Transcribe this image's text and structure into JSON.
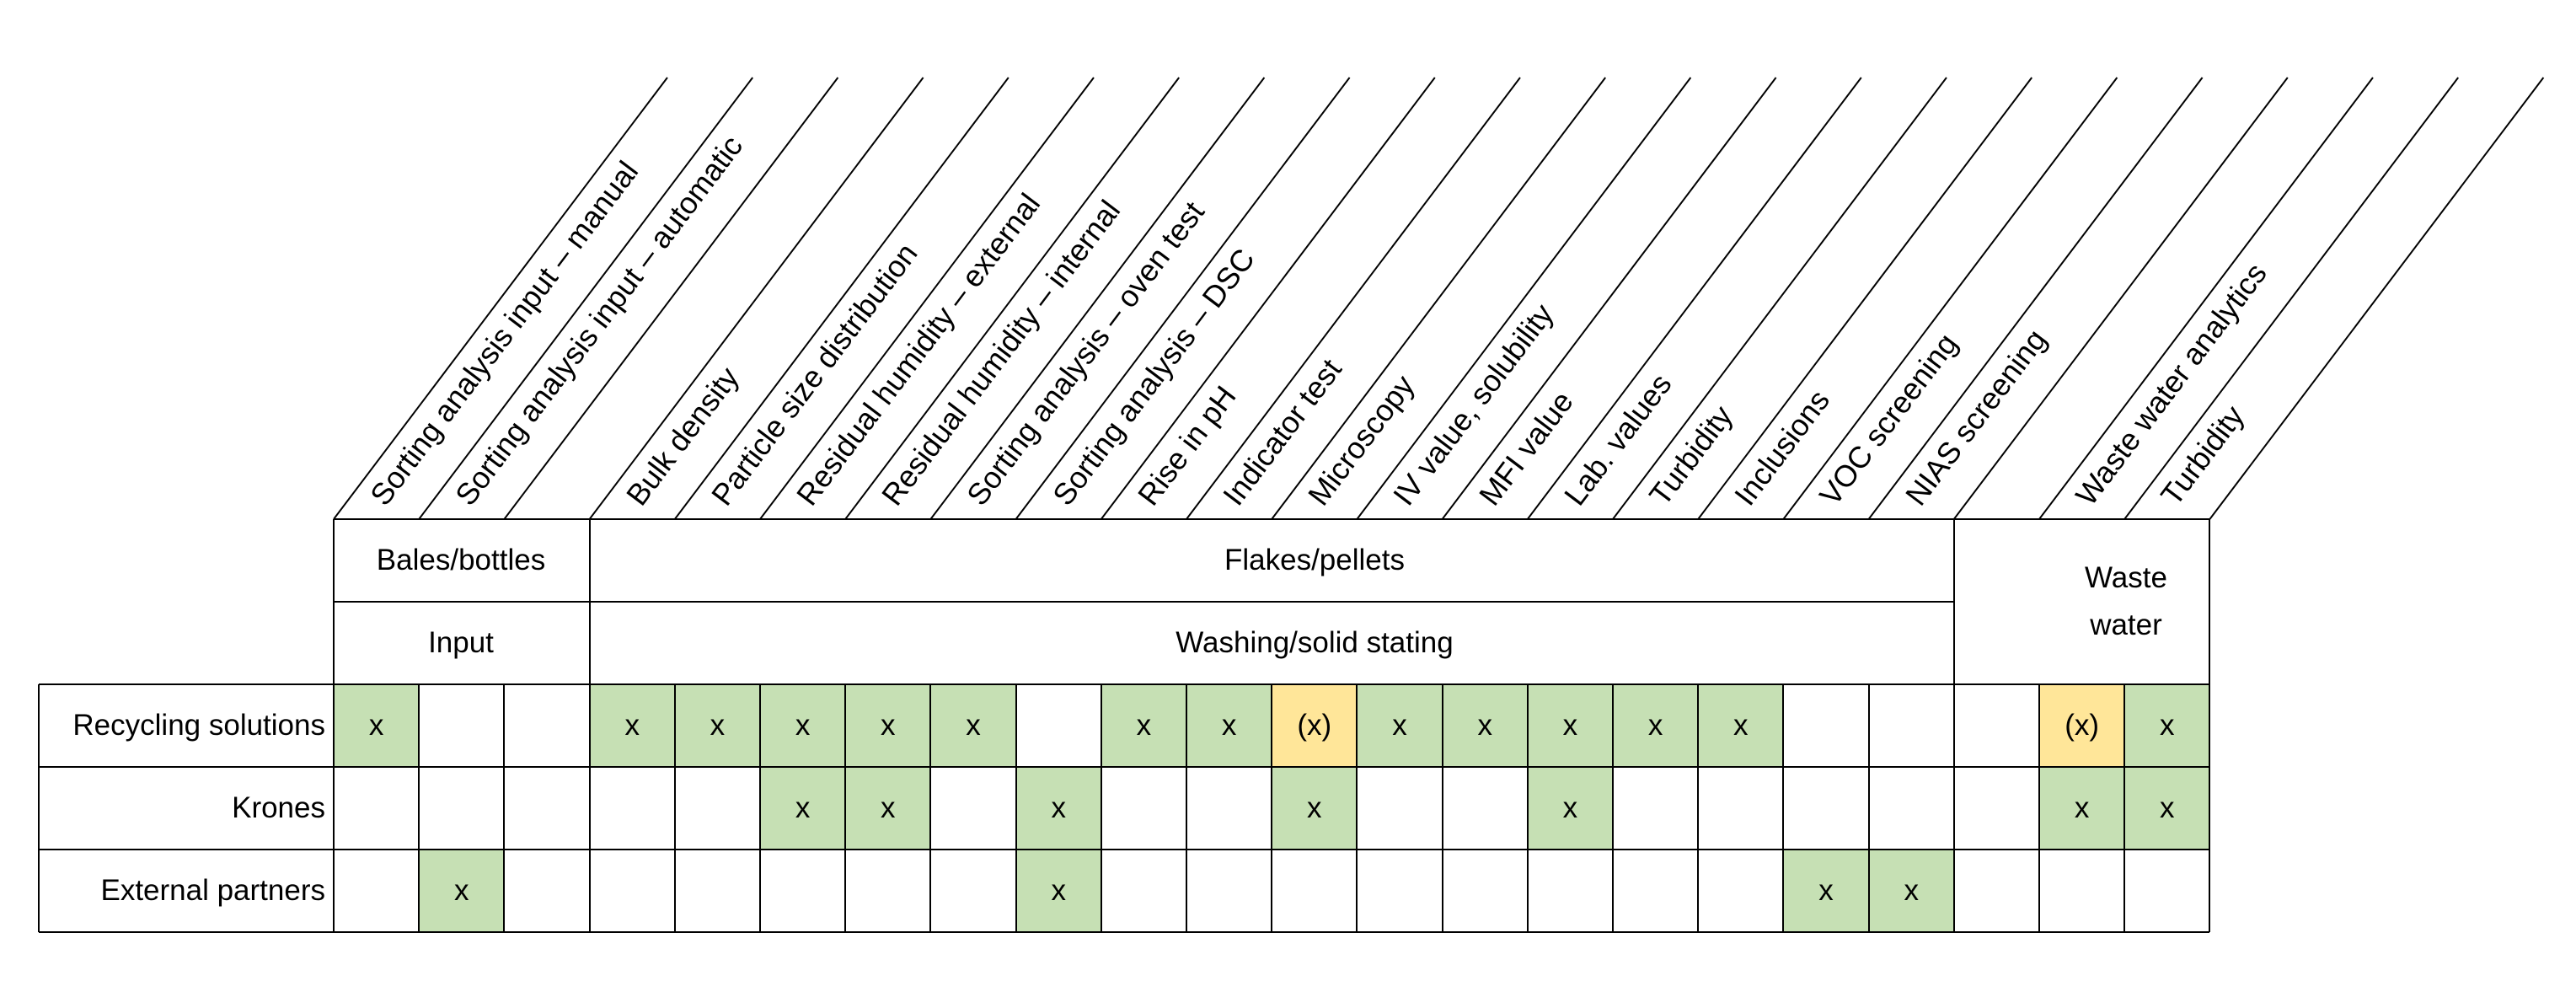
{
  "columns": [
    "Sorting analysis input – manual",
    "Sorting analysis input – automatic",
    "",
    "Bulk density",
    "Particle size distribution",
    "Residual humidity – external",
    "Residual humidity – internal",
    "Sorting analysis – oven test",
    "Sorting analysis – DSC",
    "Rise in pH",
    "Indicator test",
    "Microscopy",
    "IV value, solubility",
    "MFI value",
    "Lab. values",
    "Turbidity",
    "Inclusions",
    "VOC screening",
    "NIAS screening",
    "",
    "Waste water analytics",
    "Turbidity"
  ],
  "groups_top": [
    {
      "label": "Bales/bottles"
    },
    {
      "label": "Flakes/pellets"
    },
    {
      "label": "Waste\nwater"
    }
  ],
  "groups_second": [
    {
      "label": "Input"
    },
    {
      "label": "Washing/solid stating"
    }
  ],
  "rows": [
    {
      "label": "Recycling solutions",
      "cells": [
        "x",
        "",
        "",
        "x",
        "x",
        "x",
        "x",
        "x",
        "",
        "x",
        "x",
        "(x)",
        "x",
        "x",
        "x",
        "x",
        "x",
        "",
        "",
        "",
        "(x)",
        "x"
      ]
    },
    {
      "label": "Krones",
      "cells": [
        "",
        "",
        "",
        "",
        "",
        "x",
        "x",
        "",
        "x",
        "",
        "",
        "x",
        "",
        "",
        "x",
        "",
        "",
        "",
        "",
        "",
        "x",
        "x"
      ]
    },
    {
      "label": "External partners",
      "cells": [
        "",
        "x",
        "",
        "",
        "",
        "",
        "",
        "",
        "x",
        "",
        "",
        "",
        "",
        "",
        "",
        "",
        "",
        "x",
        "x",
        "",
        "",
        ""
      ]
    }
  ],
  "colors": {
    "marked": "#c6e0b4",
    "partial": "#ffe699",
    "grid": "#000000"
  }
}
